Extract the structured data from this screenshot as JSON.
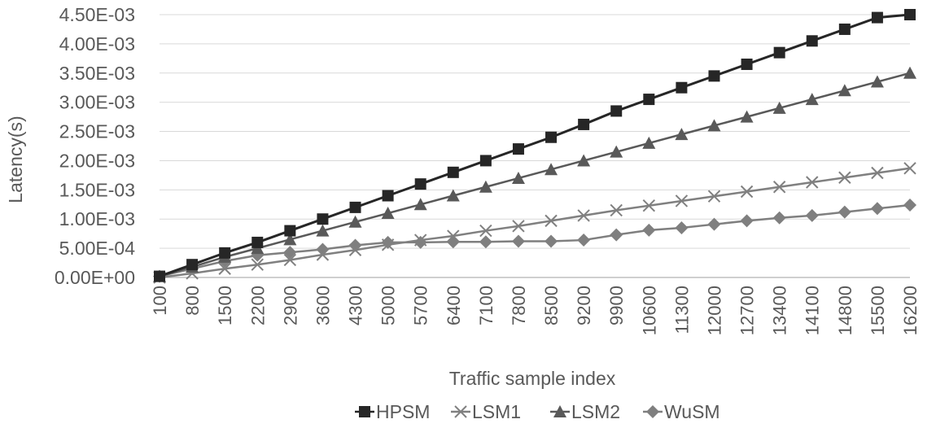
{
  "chart_data": {
    "type": "line",
    "title": "",
    "xlabel": "Traffic sample index",
    "ylabel": "Latency(s)",
    "categories": [
      "100",
      "800",
      "1500",
      "2200",
      "2900",
      "3600",
      "4300",
      "5000",
      "5700",
      "6400",
      "7100",
      "7800",
      "8500",
      "9200",
      "9900",
      "10600",
      "11300",
      "12000",
      "12700",
      "13400",
      "14100",
      "14800",
      "15500",
      "16200"
    ],
    "ylim": [
      0,
      0.0045
    ],
    "yticks": [
      {
        "value": 0,
        "label": "0.00E+00"
      },
      {
        "value": 0.0005,
        "label": "5.00E-04"
      },
      {
        "value": 0.001,
        "label": "1.00E-03"
      },
      {
        "value": 0.0015,
        "label": "1.50E-03"
      },
      {
        "value": 0.002,
        "label": "2.00E-03"
      },
      {
        "value": 0.0025,
        "label": "2.50E-03"
      },
      {
        "value": 0.003,
        "label": "3.00E-03"
      },
      {
        "value": 0.0035,
        "label": "3.50E-03"
      },
      {
        "value": 0.004,
        "label": "4.00E-03"
      },
      {
        "value": 0.0045,
        "label": "4.50E-03"
      }
    ],
    "grid": true,
    "legend_position": "bottom",
    "series": [
      {
        "name": "HPSM",
        "marker": "square",
        "color": "#262626",
        "values": [
          2e-05,
          0.00022,
          0.00042,
          0.0006,
          0.0008,
          0.001,
          0.0012,
          0.0014,
          0.0016,
          0.0018,
          0.002,
          0.0022,
          0.0024,
          0.00262,
          0.00285,
          0.00305,
          0.00325,
          0.00345,
          0.00365,
          0.00385,
          0.00405,
          0.00425,
          0.00445,
          0.00465
        ]
      },
      {
        "name": "LSM1",
        "marker": "x",
        "color": "#808080",
        "values": [
          0.0,
          7e-05,
          0.00015,
          0.00022,
          0.0003,
          0.00039,
          0.00047,
          0.00056,
          0.00064,
          0.00071,
          0.0008,
          0.00088,
          0.00097,
          0.00106,
          0.00115,
          0.00123,
          0.00131,
          0.00139,
          0.00147,
          0.00155,
          0.00163,
          0.00171,
          0.00179,
          0.00187
        ]
      },
      {
        "name": "LSM2",
        "marker": "triangle",
        "color": "#595959",
        "values": [
          2e-05,
          0.00018,
          0.00035,
          0.0005,
          0.00065,
          0.0008,
          0.00095,
          0.0011,
          0.00125,
          0.0014,
          0.00155,
          0.0017,
          0.00185,
          0.002,
          0.00215,
          0.0023,
          0.00245,
          0.0026,
          0.00275,
          0.0029,
          0.00305,
          0.0032,
          0.00335,
          0.0035
        ]
      },
      {
        "name": "WuSM",
        "marker": "diamond",
        "color": "#7f7f7f",
        "values": [
          2e-05,
          0.00015,
          0.00028,
          0.00038,
          0.00043,
          0.00048,
          0.00055,
          0.0006,
          0.0006,
          0.00061,
          0.00061,
          0.00062,
          0.00062,
          0.00064,
          0.00073,
          0.00081,
          0.00085,
          0.00091,
          0.00097,
          0.00102,
          0.00106,
          0.00112,
          0.00118,
          0.00124
        ]
      }
    ]
  }
}
